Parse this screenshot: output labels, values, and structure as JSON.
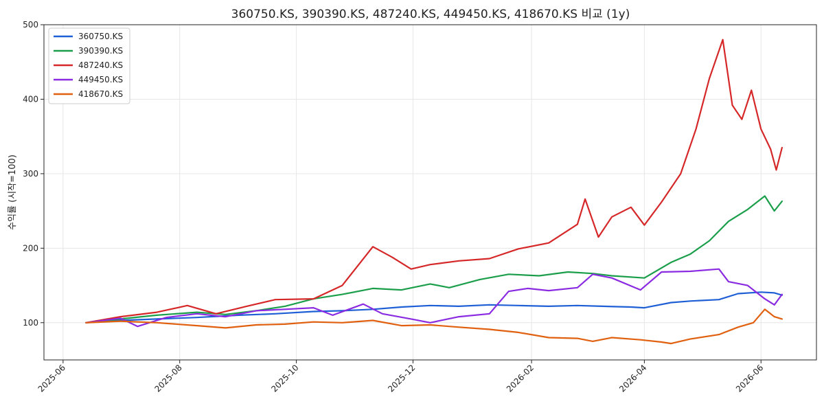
{
  "chart_data": {
    "type": "line",
    "title": "360750.KS, 390390.KS, 487240.KS, 449450.KS, 418670.KS 비교 (1y)",
    "xlabel": "",
    "ylabel": "수익률 (시작=100)",
    "x_type": "date",
    "xlim": [
      "2025-05-22",
      "2026-06-30"
    ],
    "ylim": [
      50,
      500
    ],
    "x_ticks": [
      "2025-06",
      "2025-08",
      "2025-10",
      "2025-12",
      "2026-02",
      "2026-04",
      "2026-06"
    ],
    "y_ticks": [
      100,
      200,
      300,
      400,
      500
    ],
    "grid": true,
    "legend_position": "top-left",
    "series": [
      {
        "name": "360750.KS",
        "color": "#1f5fd6",
        "points": [
          [
            "2025-06-13",
            100
          ],
          [
            "2025-07-01",
            103
          ],
          [
            "2025-07-20",
            105
          ],
          [
            "2025-08-10",
            107
          ],
          [
            "2025-09-01",
            110
          ],
          [
            "2025-09-20",
            112
          ],
          [
            "2025-10-10",
            115
          ],
          [
            "2025-10-25",
            116
          ],
          [
            "2025-11-10",
            118
          ],
          [
            "2025-11-25",
            121
          ],
          [
            "2025-12-10",
            123
          ],
          [
            "2025-12-25",
            122
          ],
          [
            "2026-01-10",
            124
          ],
          [
            "2026-01-25",
            123
          ],
          [
            "2026-02-10",
            122
          ],
          [
            "2026-02-25",
            123
          ],
          [
            "2026-03-10",
            122
          ],
          [
            "2026-03-25",
            121
          ],
          [
            "2026-04-01",
            120
          ],
          [
            "2026-04-15",
            127
          ],
          [
            "2026-04-25",
            129
          ],
          [
            "2026-05-10",
            131
          ],
          [
            "2026-05-20",
            139
          ],
          [
            "2026-06-01",
            141
          ],
          [
            "2026-06-08",
            140
          ],
          [
            "2026-06-12",
            137
          ]
        ]
      },
      {
        "name": "390390.KS",
        "color": "#1a9e4a",
        "points": [
          [
            "2025-06-13",
            100
          ],
          [
            "2025-07-01",
            105
          ],
          [
            "2025-07-20",
            110
          ],
          [
            "2025-08-10",
            114
          ],
          [
            "2025-08-25",
            111
          ],
          [
            "2025-09-10",
            116
          ],
          [
            "2025-09-25",
            122
          ],
          [
            "2025-10-10",
            132
          ],
          [
            "2025-10-25",
            138
          ],
          [
            "2025-11-10",
            146
          ],
          [
            "2025-11-25",
            144
          ],
          [
            "2025-12-10",
            152
          ],
          [
            "2025-12-20",
            147
          ],
          [
            "2026-01-05",
            158
          ],
          [
            "2026-01-20",
            165
          ],
          [
            "2026-02-05",
            163
          ],
          [
            "2026-02-20",
            168
          ],
          [
            "2026-03-05",
            166
          ],
          [
            "2026-03-15",
            163
          ],
          [
            "2026-04-01",
            160
          ],
          [
            "2026-04-15",
            181
          ],
          [
            "2026-04-25",
            192
          ],
          [
            "2026-05-05",
            210
          ],
          [
            "2026-05-15",
            236
          ],
          [
            "2026-05-25",
            252
          ],
          [
            "2026-06-03",
            270
          ],
          [
            "2026-06-08",
            250
          ],
          [
            "2026-06-12",
            263
          ]
        ]
      },
      {
        "name": "487240.KS",
        "color": "#d62728",
        "points": [
          [
            "2025-06-13",
            100
          ],
          [
            "2025-07-01",
            108
          ],
          [
            "2025-07-20",
            114
          ],
          [
            "2025-08-05",
            123
          ],
          [
            "2025-08-20",
            112
          ],
          [
            "2025-09-05",
            122
          ],
          [
            "2025-09-20",
            131
          ],
          [
            "2025-10-10",
            132
          ],
          [
            "2025-10-25",
            150
          ],
          [
            "2025-11-10",
            202
          ],
          [
            "2025-11-20",
            188
          ],
          [
            "2025-11-30",
            172
          ],
          [
            "2025-12-10",
            178
          ],
          [
            "2025-12-25",
            183
          ],
          [
            "2026-01-10",
            186
          ],
          [
            "2026-01-25",
            199
          ],
          [
            "2026-02-10",
            207
          ],
          [
            "2026-02-25",
            232
          ],
          [
            "2026-03-01",
            266
          ],
          [
            "2026-03-08",
            215
          ],
          [
            "2026-03-15",
            242
          ],
          [
            "2026-03-25",
            255
          ],
          [
            "2026-04-01",
            231
          ],
          [
            "2026-04-10",
            262
          ],
          [
            "2026-04-20",
            300
          ],
          [
            "2026-04-28",
            360
          ],
          [
            "2026-05-05",
            428
          ],
          [
            "2026-05-12",
            480
          ],
          [
            "2026-05-17",
            392
          ],
          [
            "2026-05-22",
            373
          ],
          [
            "2026-05-27",
            412
          ],
          [
            "2026-06-01",
            360
          ],
          [
            "2026-06-06",
            333
          ],
          [
            "2026-06-09",
            305
          ],
          [
            "2026-06-12",
            335
          ]
        ]
      },
      {
        "name": "449450.KS",
        "color": "#8a2be2",
        "points": [
          [
            "2025-06-13",
            100
          ],
          [
            "2025-07-01",
            106
          ],
          [
            "2025-07-10",
            95
          ],
          [
            "2025-07-25",
            107
          ],
          [
            "2025-08-10",
            112
          ],
          [
            "2025-08-25",
            108
          ],
          [
            "2025-09-10",
            116
          ],
          [
            "2025-09-25",
            118
          ],
          [
            "2025-10-10",
            120
          ],
          [
            "2025-10-20",
            110
          ],
          [
            "2025-11-05",
            125
          ],
          [
            "2025-11-15",
            112
          ],
          [
            "2025-11-30",
            105
          ],
          [
            "2025-12-10",
            100
          ],
          [
            "2025-12-25",
            108
          ],
          [
            "2026-01-10",
            112
          ],
          [
            "2026-01-20",
            142
          ],
          [
            "2026-01-30",
            146
          ],
          [
            "2026-02-10",
            143
          ],
          [
            "2026-02-25",
            147
          ],
          [
            "2026-03-05",
            165
          ],
          [
            "2026-03-15",
            160
          ],
          [
            "2026-03-30",
            144
          ],
          [
            "2026-04-10",
            168
          ],
          [
            "2026-04-25",
            169
          ],
          [
            "2026-05-10",
            172
          ],
          [
            "2026-05-15",
            155
          ],
          [
            "2026-05-25",
            150
          ],
          [
            "2026-06-03",
            132
          ],
          [
            "2026-06-08",
            124
          ],
          [
            "2026-06-12",
            138
          ]
        ]
      },
      {
        "name": "418670.KS",
        "color": "#e0600f",
        "points": [
          [
            "2025-06-13",
            100
          ],
          [
            "2025-07-01",
            102
          ],
          [
            "2025-07-20",
            100
          ],
          [
            "2025-08-10",
            96
          ],
          [
            "2025-08-25",
            93
          ],
          [
            "2025-09-10",
            97
          ],
          [
            "2025-09-25",
            98
          ],
          [
            "2025-10-10",
            101
          ],
          [
            "2025-10-25",
            100
          ],
          [
            "2025-11-10",
            103
          ],
          [
            "2025-11-25",
            96
          ],
          [
            "2025-12-10",
            97
          ],
          [
            "2025-12-25",
            94
          ],
          [
            "2026-01-10",
            91
          ],
          [
            "2026-01-25",
            87
          ],
          [
            "2026-02-10",
            80
          ],
          [
            "2026-02-25",
            79
          ],
          [
            "2026-03-05",
            75
          ],
          [
            "2026-03-15",
            80
          ],
          [
            "2026-03-30",
            77
          ],
          [
            "2026-04-10",
            74
          ],
          [
            "2026-04-15",
            72
          ],
          [
            "2026-04-25",
            78
          ],
          [
            "2026-05-10",
            84
          ],
          [
            "2026-05-20",
            94
          ],
          [
            "2026-05-28",
            100
          ],
          [
            "2026-06-03",
            118
          ],
          [
            "2026-06-08",
            108
          ],
          [
            "2026-06-12",
            105
          ]
        ]
      }
    ]
  }
}
